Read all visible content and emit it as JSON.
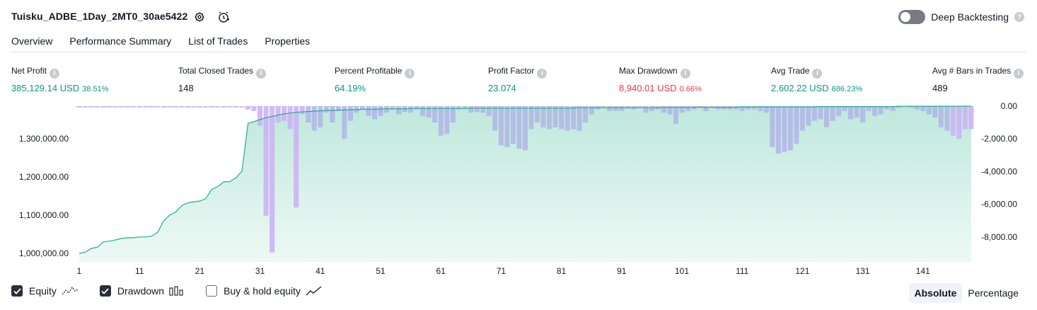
{
  "header": {
    "title": "Tuisku_ADBE_1Day_2MT0_30ae5422",
    "deep_backtesting_label": "Deep Backtesting",
    "help_glyph": "?"
  },
  "tabs": [
    {
      "label": "Overview",
      "active": true
    },
    {
      "label": "Performance Summary",
      "active": false
    },
    {
      "label": "List of Trades",
      "active": false
    },
    {
      "label": "Properties",
      "active": false
    }
  ],
  "metrics": {
    "net_profit": {
      "label": "Net Profit",
      "value": "385,129.14 USD",
      "pct": "38.51%"
    },
    "total_closed_trades": {
      "label": "Total Closed Trades",
      "value": "148"
    },
    "percent_profitable": {
      "label": "Percent Profitable",
      "value": "64.19%"
    },
    "profit_factor": {
      "label": "Profit Factor",
      "value": "23.074"
    },
    "max_drawdown": {
      "label": "Max Drawdown",
      "value": "8,940.01 USD",
      "pct": "0.66%"
    },
    "avg_trade": {
      "label": "Avg Trade",
      "value": "2,602.22 USD",
      "pct": "686.23%"
    },
    "avg_bars": {
      "label": "Avg # Bars in Trades",
      "value": "489"
    }
  },
  "legend": {
    "equity": {
      "label": "Equity",
      "checked": true
    },
    "drawdown": {
      "label": "Drawdown",
      "checked": true
    },
    "buy_hold": {
      "label": "Buy & hold equity",
      "checked": false
    }
  },
  "view_mode": {
    "absolute": "Absolute",
    "percentage": "Percentage",
    "selected": "Absolute"
  },
  "colors": {
    "equity_line": "#22ab94",
    "equity_fill": "#c8ece3",
    "drawdown_bar": "#b3b8e6",
    "drawdown_bar_alt": "#cdb3f5",
    "profit_green": "#089981",
    "loss_red": "#f23645"
  },
  "chart_data": {
    "type": "area",
    "x_ticks": [
      1,
      11,
      21,
      31,
      41,
      51,
      61,
      71,
      81,
      91,
      101,
      111,
      121,
      131,
      141
    ],
    "x_range": [
      1,
      149
    ],
    "left_axis": {
      "ticks": [
        "1,300,000.00",
        "1,200,000.00",
        "1,100,000.00",
        "1,000,000.00"
      ],
      "tick_values": [
        1300000,
        1200000,
        1100000,
        1000000
      ],
      "range": [
        1000000,
        1385129
      ]
    },
    "right_axis": {
      "ticks": [
        "0.00",
        "-2,000.00",
        "-4,000.00",
        "-6,000.00",
        "-8,000.00"
      ],
      "tick_values": [
        0,
        -2000,
        -4000,
        -6000,
        -8000
      ],
      "range": [
        -9000,
        0
      ]
    },
    "equity": [
      [
        1,
        1000000
      ],
      [
        2,
        1003000
      ],
      [
        3,
        1013000
      ],
      [
        4,
        1016000
      ],
      [
        5,
        1030000
      ],
      [
        6,
        1032000
      ],
      [
        7,
        1035000
      ],
      [
        8,
        1039000
      ],
      [
        9,
        1041000
      ],
      [
        10,
        1041000
      ],
      [
        11,
        1043000
      ],
      [
        12,
        1043000
      ],
      [
        13,
        1045000
      ],
      [
        14,
        1055000
      ],
      [
        15,
        1085000
      ],
      [
        16,
        1100000
      ],
      [
        17,
        1108000
      ],
      [
        18,
        1125000
      ],
      [
        19,
        1132000
      ],
      [
        20,
        1135000
      ],
      [
        21,
        1137000
      ],
      [
        22,
        1143000
      ],
      [
        23,
        1168000
      ],
      [
        24,
        1175000
      ],
      [
        25,
        1187000
      ],
      [
        26,
        1188000
      ],
      [
        27,
        1198000
      ],
      [
        28,
        1215000
      ],
      [
        29,
        1340000
      ],
      [
        30,
        1345000
      ],
      [
        31,
        1350000
      ],
      [
        32,
        1355000
      ],
      [
        33,
        1358000
      ],
      [
        34,
        1362000
      ],
      [
        35,
        1365000
      ],
      [
        36,
        1367000
      ],
      [
        37,
        1369000
      ],
      [
        38,
        1370000
      ],
      [
        39,
        1371000
      ],
      [
        40,
        1372000
      ],
      [
        41,
        1373000
      ],
      [
        42,
        1374000
      ],
      [
        43,
        1374000
      ],
      [
        44,
        1375000
      ],
      [
        45,
        1375000
      ],
      [
        46,
        1376000
      ],
      [
        47,
        1376000
      ],
      [
        48,
        1377000
      ],
      [
        49,
        1377000
      ],
      [
        50,
        1377000
      ],
      [
        51,
        1378000
      ],
      [
        52,
        1378000
      ],
      [
        53,
        1378000
      ],
      [
        54,
        1378000
      ],
      [
        55,
        1378000
      ],
      [
        56,
        1379000
      ],
      [
        57,
        1379000
      ],
      [
        58,
        1379000
      ],
      [
        59,
        1379000
      ],
      [
        60,
        1379000
      ],
      [
        61,
        1379000
      ],
      [
        62,
        1379000
      ],
      [
        63,
        1379000
      ],
      [
        64,
        1379000
      ],
      [
        65,
        1379000
      ],
      [
        66,
        1380000
      ],
      [
        67,
        1380000
      ],
      [
        68,
        1380000
      ],
      [
        69,
        1380000
      ],
      [
        70,
        1380000
      ],
      [
        71,
        1380000
      ],
      [
        72,
        1380000
      ],
      [
        73,
        1380000
      ],
      [
        74,
        1380000
      ],
      [
        75,
        1380000
      ],
      [
        76,
        1380000
      ],
      [
        77,
        1380000
      ],
      [
        78,
        1380000
      ],
      [
        79,
        1380000
      ],
      [
        80,
        1380000
      ],
      [
        81,
        1380000
      ],
      [
        82,
        1380000
      ],
      [
        83,
        1380000
      ],
      [
        84,
        1381000
      ],
      [
        85,
        1381000
      ],
      [
        86,
        1381000
      ],
      [
        87,
        1381000
      ],
      [
        88,
        1381000
      ],
      [
        89,
        1381000
      ],
      [
        90,
        1381000
      ],
      [
        91,
        1381000
      ],
      [
        92,
        1381000
      ],
      [
        93,
        1381000
      ],
      [
        94,
        1381000
      ],
      [
        95,
        1381000
      ],
      [
        96,
        1381000
      ],
      [
        97,
        1381000
      ],
      [
        98,
        1382000
      ],
      [
        99,
        1382000
      ],
      [
        100,
        1382000
      ],
      [
        101,
        1382000
      ],
      [
        102,
        1382000
      ],
      [
        103,
        1382000
      ],
      [
        104,
        1382000
      ],
      [
        105,
        1382000
      ],
      [
        106,
        1382000
      ],
      [
        107,
        1382000
      ],
      [
        108,
        1382000
      ],
      [
        109,
        1382000
      ],
      [
        110,
        1382000
      ],
      [
        111,
        1383000
      ],
      [
        112,
        1383000
      ],
      [
        113,
        1383000
      ],
      [
        114,
        1383000
      ],
      [
        115,
        1383000
      ],
      [
        116,
        1383000
      ],
      [
        117,
        1383000
      ],
      [
        118,
        1383000
      ],
      [
        119,
        1383000
      ],
      [
        120,
        1383000
      ],
      [
        121,
        1383000
      ],
      [
        122,
        1383000
      ],
      [
        123,
        1383000
      ],
      [
        124,
        1384000
      ],
      [
        125,
        1384000
      ],
      [
        126,
        1384000
      ],
      [
        127,
        1384000
      ],
      [
        128,
        1384000
      ],
      [
        129,
        1384000
      ],
      [
        130,
        1384000
      ],
      [
        131,
        1384000
      ],
      [
        132,
        1384000
      ],
      [
        133,
        1384000
      ],
      [
        134,
        1384000
      ],
      [
        135,
        1384000
      ],
      [
        136,
        1384000
      ],
      [
        137,
        1385000
      ],
      [
        138,
        1385000
      ],
      [
        139,
        1385000
      ],
      [
        140,
        1385000
      ],
      [
        141,
        1385000
      ],
      [
        142,
        1385000
      ],
      [
        143,
        1385000
      ],
      [
        144,
        1385000
      ],
      [
        145,
        1385000
      ],
      [
        146,
        1385000
      ],
      [
        147,
        1385000
      ],
      [
        148,
        1385129
      ],
      [
        149,
        1385129
      ]
    ],
    "drawdown": [
      [
        1,
        -80
      ],
      [
        2,
        -80
      ],
      [
        3,
        -80
      ],
      [
        4,
        -80
      ],
      [
        5,
        -80
      ],
      [
        6,
        -80
      ],
      [
        7,
        -80
      ],
      [
        8,
        -80
      ],
      [
        9,
        -80
      ],
      [
        10,
        -80
      ],
      [
        11,
        -80
      ],
      [
        12,
        -80
      ],
      [
        13,
        -80
      ],
      [
        14,
        -80
      ],
      [
        15,
        -80
      ],
      [
        16,
        -80
      ],
      [
        17,
        -80
      ],
      [
        18,
        -80
      ],
      [
        19,
        -80
      ],
      [
        20,
        -80
      ],
      [
        21,
        -80
      ],
      [
        22,
        -80
      ],
      [
        23,
        -80
      ],
      [
        24,
        -80
      ],
      [
        25,
        -80
      ],
      [
        26,
        -80
      ],
      [
        27,
        -80
      ],
      [
        28,
        -80
      ],
      [
        29,
        -200
      ],
      [
        30,
        -300
      ],
      [
        31,
        -1200
      ],
      [
        32,
        -6700
      ],
      [
        33,
        -8940
      ],
      [
        34,
        -1000
      ],
      [
        35,
        -900
      ],
      [
        36,
        -1400
      ],
      [
        37,
        -6200
      ],
      [
        38,
        -500
      ],
      [
        39,
        -1000
      ],
      [
        40,
        -1500
      ],
      [
        41,
        -1300
      ],
      [
        42,
        -400
      ],
      [
        43,
        -1000
      ],
      [
        44,
        -300
      ],
      [
        45,
        -2000
      ],
      [
        46,
        -900
      ],
      [
        47,
        -400
      ],
      [
        48,
        -200
      ],
      [
        49,
        -600
      ],
      [
        50,
        -800
      ],
      [
        51,
        -600
      ],
      [
        52,
        -400
      ],
      [
        53,
        -200
      ],
      [
        54,
        -500
      ],
      [
        55,
        -350
      ],
      [
        56,
        -400
      ],
      [
        57,
        -200
      ],
      [
        58,
        -600
      ],
      [
        59,
        -700
      ],
      [
        60,
        -1000
      ],
      [
        61,
        -1800
      ],
      [
        62,
        -1700
      ],
      [
        63,
        -1000
      ],
      [
        64,
        -200
      ],
      [
        65,
        -150
      ],
      [
        66,
        -400
      ],
      [
        67,
        -350
      ],
      [
        68,
        -400
      ],
      [
        69,
        -600
      ],
      [
        70,
        -1500
      ],
      [
        71,
        -2400
      ],
      [
        72,
        -2500
      ],
      [
        73,
        -2300
      ],
      [
        74,
        -2600
      ],
      [
        75,
        -2700
      ],
      [
        76,
        -1400
      ],
      [
        77,
        -1000
      ],
      [
        78,
        -1300
      ],
      [
        79,
        -1400
      ],
      [
        80,
        -1300
      ],
      [
        81,
        -1400
      ],
      [
        82,
        -1500
      ],
      [
        83,
        -1400
      ],
      [
        84,
        -1500
      ],
      [
        85,
        -1000
      ],
      [
        86,
        -500
      ],
      [
        87,
        -200
      ],
      [
        88,
        -100
      ],
      [
        89,
        -300
      ],
      [
        90,
        -300
      ],
      [
        91,
        -300
      ],
      [
        92,
        -150
      ],
      [
        93,
        -200
      ],
      [
        94,
        -100
      ],
      [
        95,
        -400
      ],
      [
        96,
        -300
      ],
      [
        97,
        -200
      ],
      [
        98,
        -400
      ],
      [
        99,
        -500
      ],
      [
        100,
        -1100
      ],
      [
        101,
        -400
      ],
      [
        102,
        -300
      ],
      [
        103,
        -200
      ],
      [
        104,
        -100
      ],
      [
        105,
        -300
      ],
      [
        106,
        -100
      ],
      [
        107,
        -200
      ],
      [
        108,
        -200
      ],
      [
        109,
        -200
      ],
      [
        110,
        -200
      ],
      [
        111,
        -300
      ],
      [
        112,
        -200
      ],
      [
        113,
        -200
      ],
      [
        114,
        -300
      ],
      [
        115,
        -400
      ],
      [
        116,
        -2500
      ],
      [
        117,
        -2900
      ],
      [
        118,
        -2800
      ],
      [
        119,
        -2700
      ],
      [
        120,
        -2300
      ],
      [
        121,
        -1500
      ],
      [
        122,
        -1200
      ],
      [
        123,
        -900
      ],
      [
        124,
        -800
      ],
      [
        125,
        -1300
      ],
      [
        126,
        -900
      ],
      [
        127,
        -600
      ],
      [
        128,
        -300
      ],
      [
        129,
        -800
      ],
      [
        130,
        -700
      ],
      [
        131,
        -1000
      ],
      [
        132,
        -300
      ],
      [
        133,
        -600
      ],
      [
        134,
        -500
      ],
      [
        135,
        -200
      ],
      [
        136,
        -300
      ],
      [
        137,
        -100
      ],
      [
        138,
        -50
      ],
      [
        139,
        -100
      ],
      [
        140,
        -200
      ],
      [
        141,
        -300
      ],
      [
        142,
        -500
      ],
      [
        143,
        -700
      ],
      [
        144,
        -1300
      ],
      [
        145,
        -1500
      ],
      [
        146,
        -1800
      ],
      [
        147,
        -2000
      ],
      [
        148,
        -1400
      ],
      [
        149,
        -1400
      ]
    ]
  }
}
